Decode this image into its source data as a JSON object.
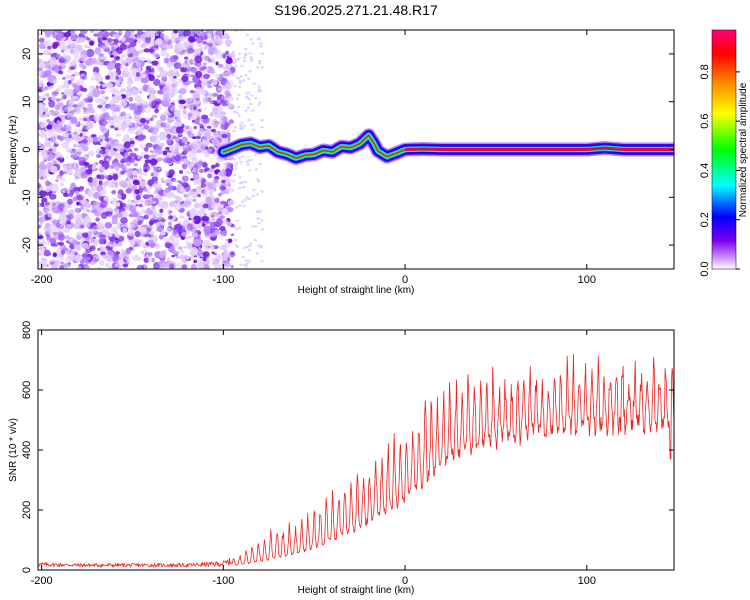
{
  "figure_title": "S196.2025.271.21.48.R17",
  "chart_data": [
    {
      "type": "heatmap",
      "title": "S196.2025.271.21.48.R17",
      "xlabel": "Height of straight line (km)",
      "ylabel": "Frequency (Hz)",
      "xlim": [
        -202,
        148
      ],
      "ylim": [
        -25,
        25
      ],
      "xticks": [
        -200,
        -100,
        0,
        100
      ],
      "xtick_labels": [
        "-200",
        "-100",
        "0",
        "100"
      ],
      "yticks": [
        -20,
        -10,
        0,
        10,
        20
      ],
      "ytick_labels": [
        "-20",
        "-10",
        "0",
        "10",
        "20"
      ],
      "colorbar": {
        "label": "Normalized spectral amplitude",
        "range": [
          0,
          0.97
        ],
        "ticks": [
          0.0,
          0.2,
          0.4,
          0.6,
          0.8
        ],
        "tick_labels": [
          "0.0",
          "0.2",
          "0.4",
          "0.6",
          "0.8"
        ],
        "colormap": [
          "#ffffff",
          "#cc88ff",
          "#7700ee",
          "#0000ff",
          "#00ffff",
          "#00ff00",
          "#ffff00",
          "#ff8800",
          "#ff0000",
          "#ff0077"
        ]
      },
      "noise_region_x": [
        -202,
        -95
      ],
      "ridge": {
        "x": [
          -100,
          -95,
          -90,
          -85,
          -80,
          -75,
          -70,
          -65,
          -60,
          -55,
          -50,
          -45,
          -40,
          -35,
          -30,
          -25,
          -20,
          -17,
          -15,
          -10,
          -5,
          0,
          10,
          20,
          40,
          60,
          80,
          100,
          110,
          120,
          130,
          148
        ],
        "y": [
          -0.5,
          0.2,
          1.0,
          1.3,
          0.5,
          0.8,
          -0.5,
          -1.0,
          -1.8,
          -1.2,
          -1.0,
          -0.2,
          -0.5,
          0.6,
          0.4,
          1.2,
          3.0,
          1.2,
          -0.3,
          -1.5,
          -0.8,
          0.0,
          0.1,
          0.0,
          0.0,
          0.0,
          0.0,
          0.0,
          0.3,
          0.0,
          0.0,
          0.0
        ]
      }
    },
    {
      "type": "line",
      "xlabel": "Height of straight line (km)",
      "ylabel": "SNR (10 * v/v)",
      "xlim": [
        -202,
        148
      ],
      "ylim": [
        0,
        800
      ],
      "xticks": [
        -200,
        -100,
        0,
        100
      ],
      "xtick_labels": [
        "-200",
        "-100",
        "0",
        "100"
      ],
      "yticks": [
        0,
        200,
        400,
        600,
        800
      ],
      "ytick_labels": [
        "0",
        "200",
        "400",
        "600",
        "800"
      ],
      "series": [
        {
          "name": "SNR",
          "color": "#ee2222",
          "x": [
            -202,
            -180,
            -160,
            -140,
            -120,
            -100,
            -90,
            -80,
            -70,
            -60,
            -50,
            -40,
            -30,
            -20,
            -10,
            0,
            10,
            20,
            30,
            40,
            50,
            60,
            70,
            80,
            90,
            100,
            110,
            120,
            130,
            140,
            148
          ],
          "baseline": [
            12,
            10,
            10,
            10,
            10,
            12,
            20,
            30,
            45,
            60,
            80,
            110,
            140,
            175,
            210,
            260,
            320,
            380,
            420,
            450,
            470,
            480,
            490,
            500,
            510,
            515,
            520,
            525,
            530,
            530,
            530
          ],
          "peak": [
            25,
            22,
            22,
            22,
            22,
            30,
            60,
            120,
            160,
            170,
            240,
            280,
            330,
            380,
            470,
            520,
            600,
            650,
            680,
            700,
            710,
            720,
            720,
            730,
            735,
            740,
            740,
            750,
            760,
            750,
            740
          ]
        }
      ]
    }
  ]
}
